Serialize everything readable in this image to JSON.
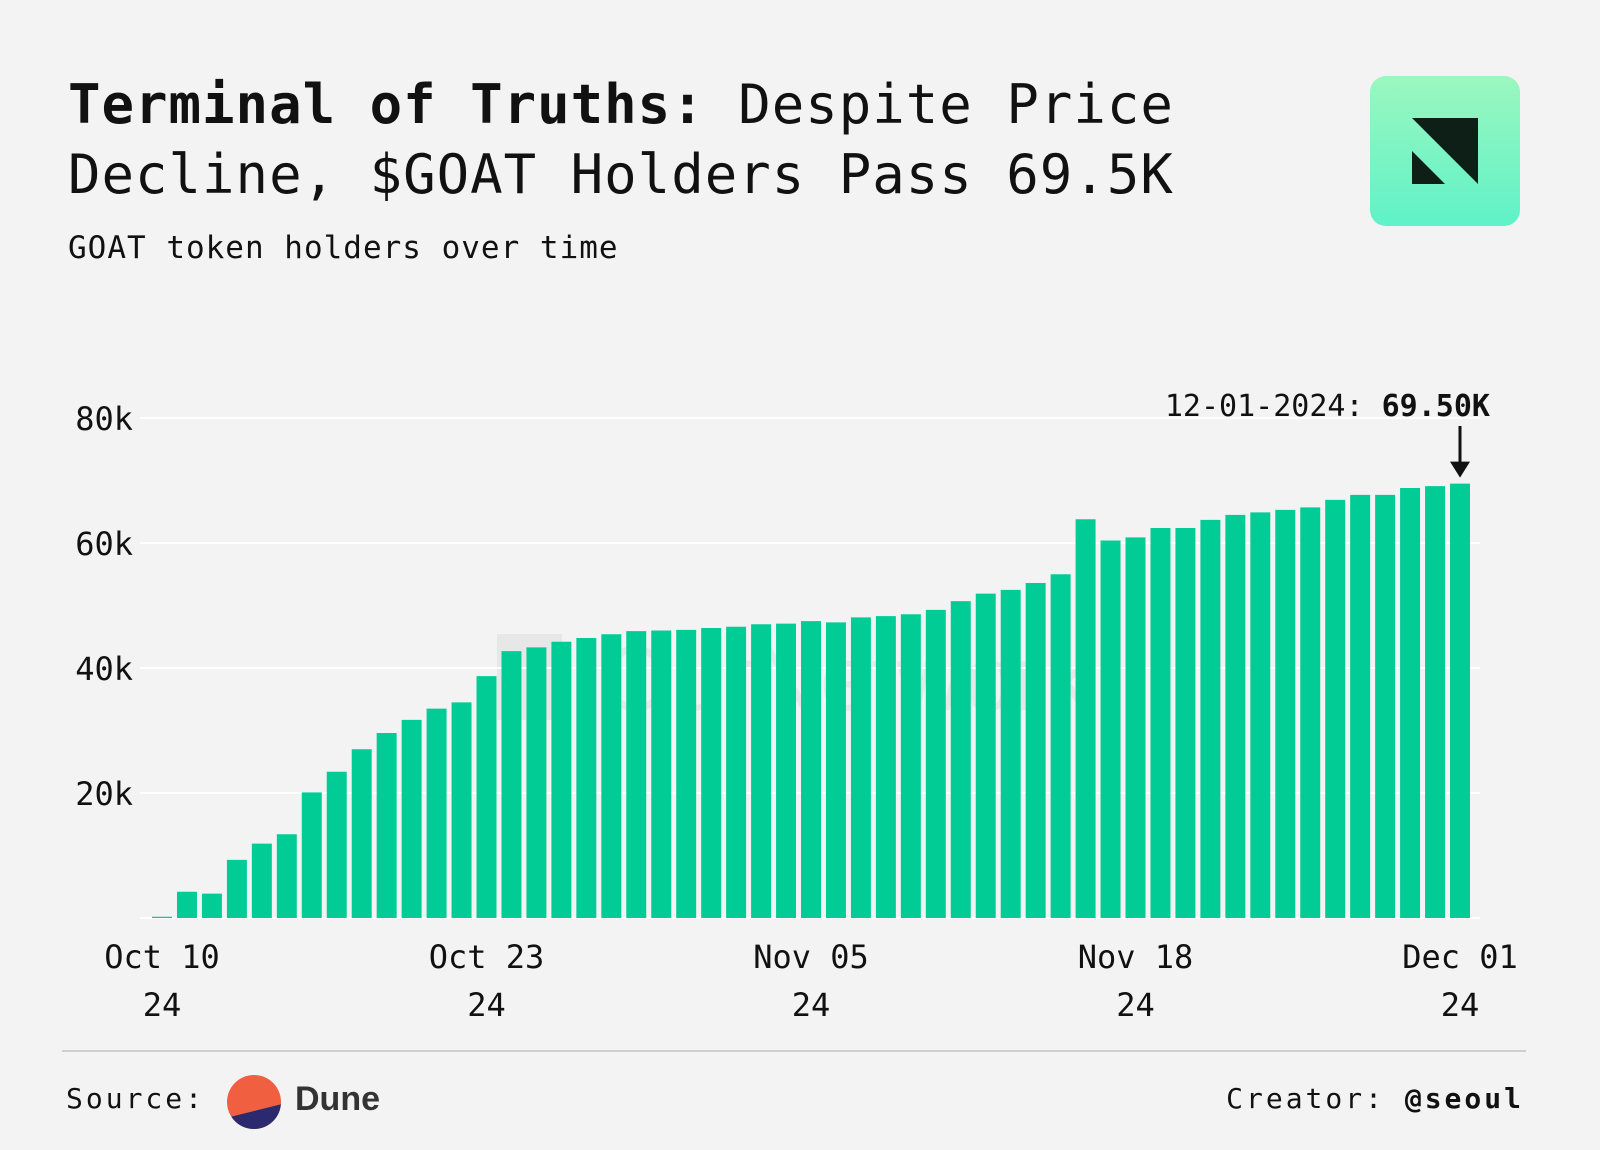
{
  "header": {
    "title_bold": "Terminal of Truths:",
    "title_rest": " Despite Price Decline, $GOAT Holders Pass 69.5K",
    "subtitle": "GOAT token holders over time"
  },
  "logo": {
    "icon": "ournetwork-logo-icon",
    "bg_top": "#9bf7bf",
    "bg_bottom": "#5ff2c8"
  },
  "watermark": "OurNetwork",
  "footer": {
    "source_label": "Source:",
    "source_name": "Dune",
    "creator_label": "Creator:",
    "creator_handle": "@seoul"
  },
  "chart_data": {
    "type": "bar",
    "title": "GOAT token holders over time",
    "bar_color": "#02cc95",
    "ylim": [
      0,
      80000
    ],
    "yticks": [
      20000,
      40000,
      60000,
      80000
    ],
    "ytick_labels": [
      "20k",
      "40k",
      "60k",
      "80k"
    ],
    "grid": true,
    "xtick_labels": [
      {
        "index": 0,
        "line1": "Oct 10",
        "line2": "24"
      },
      {
        "index": 13,
        "line1": "Oct 23",
        "line2": "24"
      },
      {
        "index": 26,
        "line1": "Nov 05",
        "line2": "24"
      },
      {
        "index": 39,
        "line1": "Nov 18",
        "line2": "24"
      },
      {
        "index": 52,
        "line1": "Dec 01",
        "line2": "24"
      }
    ],
    "start_date": "2024-10-10",
    "end_date": "2024-12-01",
    "values": [
      200,
      4200,
      3900,
      9300,
      11900,
      13400,
      20100,
      23400,
      27000,
      29600,
      31700,
      33500,
      34500,
      38700,
      42700,
      43300,
      44200,
      44800,
      45400,
      45900,
      46000,
      46100,
      46400,
      46600,
      47000,
      47100,
      47500,
      47300,
      48100,
      48300,
      48600,
      49300,
      50700,
      51900,
      52500,
      53600,
      55000,
      63800,
      60400,
      60900,
      62400,
      62400,
      63700,
      64500,
      64900,
      65300,
      65700,
      66900,
      67700,
      67700,
      68800,
      69100,
      69500
    ],
    "annotation": {
      "index": 52,
      "date": "12-01-2024:",
      "value_label": "69.50K"
    }
  }
}
